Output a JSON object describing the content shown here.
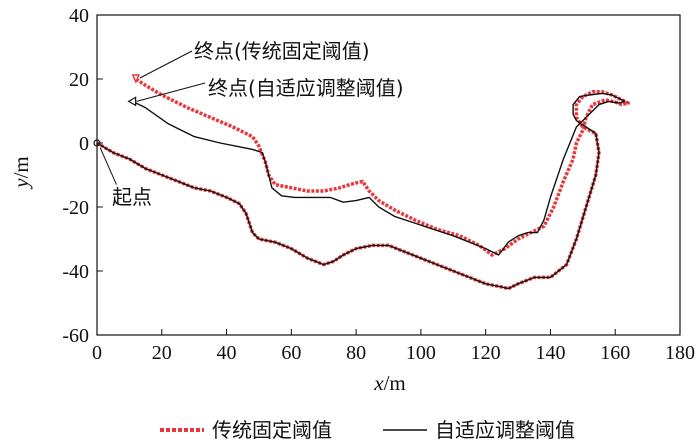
{
  "chart_data": {
    "type": "line",
    "xlabel_var": "x",
    "xlabel_unit": "/m",
    "ylabel_var": "y",
    "ylabel_unit": "/m",
    "xlim": [
      0,
      180
    ],
    "ylim": [
      -60,
      40
    ],
    "xticks": [
      0,
      20,
      40,
      60,
      80,
      100,
      120,
      140,
      160,
      180
    ],
    "yticks": [
      40,
      20,
      0,
      -20,
      -40,
      -60
    ],
    "grid": false,
    "legend_position": "bottom-center",
    "annotations": {
      "start": "起点",
      "end_fixed": "终点(传统固定阈值)",
      "end_adaptive": "终点(自适应调整阈值)"
    },
    "series": [
      {
        "name": "传统固定阈值",
        "color": "#e8383d",
        "style": "dotted",
        "points": [
          [
            0,
            0
          ],
          [
            5,
            -3
          ],
          [
            10,
            -5
          ],
          [
            15,
            -8
          ],
          [
            20,
            -10
          ],
          [
            25,
            -12
          ],
          [
            30,
            -14
          ],
          [
            35,
            -15
          ],
          [
            40,
            -17
          ],
          [
            44,
            -19
          ],
          [
            46,
            -22
          ],
          [
            48,
            -28
          ],
          [
            50,
            -30
          ],
          [
            55,
            -31
          ],
          [
            60,
            -33
          ],
          [
            65,
            -36
          ],
          [
            70,
            -38
          ],
          [
            73,
            -37
          ],
          [
            76,
            -35
          ],
          [
            80,
            -33
          ],
          [
            85,
            -32
          ],
          [
            90,
            -32
          ],
          [
            95,
            -34
          ],
          [
            100,
            -36
          ],
          [
            105,
            -38
          ],
          [
            110,
            -40
          ],
          [
            115,
            -42
          ],
          [
            120,
            -44
          ],
          [
            125,
            -45
          ],
          [
            127,
            -45.5
          ],
          [
            130,
            -44
          ],
          [
            135,
            -42
          ],
          [
            140,
            -42
          ],
          [
            145,
            -38
          ],
          [
            148,
            -30
          ],
          [
            151,
            -20
          ],
          [
            154,
            -10
          ],
          [
            155,
            -3
          ],
          [
            154,
            3
          ],
          [
            150,
            5
          ],
          [
            148,
            8
          ],
          [
            148,
            12
          ],
          [
            150,
            14.5
          ],
          [
            153,
            16
          ],
          [
            156,
            16
          ],
          [
            159,
            15
          ],
          [
            162,
            13.5
          ],
          [
            164,
            12.5
          ],
          [
            162,
            12
          ],
          [
            160,
            12.8
          ],
          [
            157,
            13.5
          ],
          [
            153,
            12
          ],
          [
            151,
            8
          ],
          [
            150,
            4
          ],
          [
            148,
            0
          ],
          [
            147,
            -5
          ],
          [
            144,
            -12
          ],
          [
            141,
            -20
          ],
          [
            138,
            -26
          ],
          [
            134,
            -28
          ],
          [
            130,
            -30
          ],
          [
            126,
            -33
          ],
          [
            122,
            -35
          ],
          [
            118,
            -32
          ],
          [
            112,
            -29
          ],
          [
            105,
            -27
          ],
          [
            98,
            -24
          ],
          [
            92,
            -21
          ],
          [
            87,
            -18
          ],
          [
            84,
            -15
          ],
          [
            82,
            -12
          ],
          [
            78,
            -13
          ],
          [
            75,
            -14
          ],
          [
            70,
            -15
          ],
          [
            65,
            -15
          ],
          [
            60,
            -14
          ],
          [
            55,
            -13
          ],
          [
            53,
            -10
          ],
          [
            52,
            -6
          ],
          [
            50,
            -1
          ],
          [
            48,
            2
          ],
          [
            42,
            5
          ],
          [
            35,
            8
          ],
          [
            28,
            11
          ],
          [
            20,
            15
          ],
          [
            15,
            18
          ],
          [
            12,
            20
          ]
        ]
      },
      {
        "name": "自适应调整阈值",
        "color": "#111111",
        "style": "solid",
        "points": [
          [
            0,
            0
          ],
          [
            5,
            -3
          ],
          [
            10,
            -5
          ],
          [
            15,
            -8
          ],
          [
            20,
            -10
          ],
          [
            25,
            -12
          ],
          [
            30,
            -14
          ],
          [
            35,
            -15
          ],
          [
            40,
            -17
          ],
          [
            44,
            -19
          ],
          [
            46,
            -22
          ],
          [
            48,
            -28
          ],
          [
            50,
            -30
          ],
          [
            55,
            -31
          ],
          [
            60,
            -33
          ],
          [
            65,
            -36
          ],
          [
            70,
            -38
          ],
          [
            73,
            -37
          ],
          [
            76,
            -35
          ],
          [
            80,
            -33
          ],
          [
            85,
            -32
          ],
          [
            90,
            -32
          ],
          [
            95,
            -34
          ],
          [
            100,
            -36
          ],
          [
            105,
            -38
          ],
          [
            110,
            -40
          ],
          [
            115,
            -42
          ],
          [
            120,
            -44
          ],
          [
            125,
            -45
          ],
          [
            127,
            -45.5
          ],
          [
            130,
            -44
          ],
          [
            135,
            -42
          ],
          [
            140,
            -42
          ],
          [
            145,
            -38
          ],
          [
            148,
            -30
          ],
          [
            151,
            -20
          ],
          [
            154,
            -10
          ],
          [
            155,
            -3
          ],
          [
            154,
            3
          ],
          [
            151,
            5
          ],
          [
            148,
            7
          ],
          [
            147,
            9
          ],
          [
            147,
            12
          ],
          [
            149,
            14.5
          ],
          [
            152,
            15
          ],
          [
            156,
            15.5
          ],
          [
            159,
            15
          ],
          [
            161,
            14
          ],
          [
            163,
            13
          ],
          [
            161,
            12.5
          ],
          [
            158,
            13
          ],
          [
            155,
            12
          ],
          [
            151,
            8
          ],
          [
            148,
            5
          ],
          [
            146,
            0
          ],
          [
            144,
            -5
          ],
          [
            142,
            -11
          ],
          [
            140,
            -17
          ],
          [
            138,
            -24
          ],
          [
            136,
            -28
          ],
          [
            133,
            -28
          ],
          [
            130,
            -29
          ],
          [
            127,
            -31
          ],
          [
            124,
            -35
          ],
          [
            120,
            -33
          ],
          [
            115,
            -31
          ],
          [
            110,
            -29
          ],
          [
            104,
            -27
          ],
          [
            98,
            -25
          ],
          [
            92,
            -23
          ],
          [
            87,
            -20
          ],
          [
            84,
            -17
          ],
          [
            80,
            -18
          ],
          [
            76,
            -18.5
          ],
          [
            72,
            -17
          ],
          [
            66,
            -17
          ],
          [
            61,
            -17
          ],
          [
            57,
            -16.5
          ],
          [
            54,
            -14
          ],
          [
            53,
            -10
          ],
          [
            52,
            -6
          ],
          [
            51,
            -3
          ],
          [
            48,
            -2
          ],
          [
            43,
            -1
          ],
          [
            38,
            0
          ],
          [
            30,
            2
          ],
          [
            22,
            6
          ],
          [
            15,
            11
          ],
          [
            11,
            13
          ]
        ]
      }
    ]
  }
}
